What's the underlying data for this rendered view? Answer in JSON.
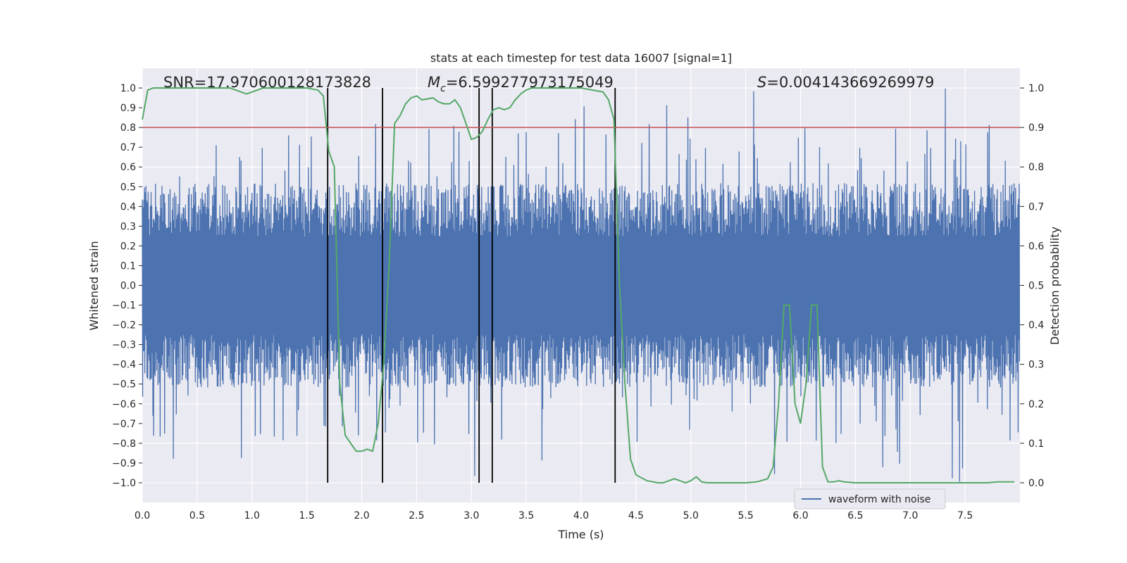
{
  "chart_data": {
    "type": "line",
    "title": "stats at each timestep for test data 16007 [signal=1]",
    "xlabel": "Time (s)",
    "ylabel": "Whitened strain",
    "ylabel_right": "Detection probability",
    "xlim": [
      0,
      8
    ],
    "ylim": [
      -1.1,
      1.1
    ],
    "ylim_right": [
      -0.05,
      1.05
    ],
    "grid": true,
    "x_ticks": [
      "0.0",
      "0.5",
      "1.0",
      "1.5",
      "2.0",
      "2.5",
      "3.0",
      "3.5",
      "4.0",
      "4.5",
      "5.0",
      "5.5",
      "6.0",
      "6.5",
      "7.0",
      "7.5"
    ],
    "y_ticks": [
      "1.0",
      "0.9",
      "0.8",
      "0.7",
      "0.6",
      "0.5",
      "0.4",
      "0.3",
      "0.2",
      "0.1",
      "0.0",
      "−0.1",
      "−0.2",
      "−0.3",
      "−0.4",
      "−0.5",
      "−0.6",
      "−0.7",
      "−0.8",
      "−0.9",
      "−1.0"
    ],
    "y_right_ticks": [
      "1.0",
      "0.9",
      "0.8",
      "0.7",
      "0.6",
      "0.5",
      "0.4",
      "0.3",
      "0.2",
      "0.1",
      "0.0"
    ],
    "annotations": {
      "snr": "SNR=17.970600128173828",
      "mc_symbol": "M",
      "mc_sub": "c",
      "mc_value": "=6.599277973175049",
      "s_symbol": "S",
      "s_value": "=0.004143669269979"
    },
    "legend": {
      "placement": "lower-right",
      "label": "waveform with noise"
    },
    "threshold": {
      "value": 0.9,
      "color": "#c44e52"
    },
    "vertical_lines_x": [
      1.69,
      2.19,
      3.07,
      3.19,
      4.31
    ],
    "waveform": {
      "name": "waveform with noise",
      "color": "#4c72b0",
      "amplitude_typical": 0.45,
      "amplitude_peak": 1.0
    },
    "series": [
      {
        "name": "detection probability",
        "color": "#55a868",
        "x": [
          0.0,
          0.05,
          0.1,
          0.15,
          0.2,
          0.3,
          0.5,
          0.6,
          0.8,
          0.9,
          0.95,
          1.0,
          1.1,
          1.3,
          1.5,
          1.6,
          1.65,
          1.7,
          1.75,
          1.8,
          1.85,
          1.9,
          1.95,
          2.0,
          2.05,
          2.1,
          2.15,
          2.2,
          2.25,
          2.3,
          2.35,
          2.4,
          2.45,
          2.5,
          2.55,
          2.65,
          2.7,
          2.75,
          2.8,
          2.85,
          2.9,
          2.95,
          3.0,
          3.05,
          3.1,
          3.15,
          3.2,
          3.25,
          3.3,
          3.35,
          3.4,
          3.45,
          3.5,
          3.55,
          3.6,
          3.65,
          3.7,
          3.8,
          4.0,
          4.2,
          4.25,
          4.3,
          4.35,
          4.4,
          4.45,
          4.5,
          4.6,
          4.7,
          4.75,
          4.8,
          4.85,
          4.9,
          4.95,
          5.0,
          5.05,
          5.1,
          5.15,
          5.2,
          5.3,
          5.4,
          5.5,
          5.6,
          5.7,
          5.75,
          5.8,
          5.85,
          5.9,
          5.95,
          6.0,
          6.05,
          6.1,
          6.15,
          6.2,
          6.25,
          6.3,
          6.35,
          6.4,
          6.5,
          6.6,
          6.7,
          6.8,
          7.0,
          7.2,
          7.4,
          7.5,
          7.6,
          7.7,
          7.8,
          7.95
        ],
        "values": [
          0.92,
          0.995,
          1.0,
          1.0,
          1.0,
          1.0,
          1.0,
          1.0,
          1.0,
          0.99,
          0.985,
          0.99,
          1.0,
          1.0,
          1.0,
          0.995,
          0.98,
          0.84,
          0.8,
          0.25,
          0.12,
          0.1,
          0.08,
          0.08,
          0.085,
          0.08,
          0.15,
          0.3,
          0.55,
          0.91,
          0.93,
          0.96,
          0.975,
          0.98,
          0.97,
          0.975,
          0.965,
          0.96,
          0.96,
          0.97,
          0.95,
          0.91,
          0.87,
          0.875,
          0.89,
          0.92,
          0.945,
          0.95,
          0.945,
          0.95,
          0.97,
          0.985,
          0.995,
          1.0,
          1.0,
          1.0,
          1.0,
          1.0,
          1.0,
          0.99,
          0.97,
          0.92,
          0.5,
          0.25,
          0.06,
          0.02,
          0.005,
          0.0,
          0.0,
          0.005,
          0.01,
          0.005,
          0.0,
          0.005,
          0.015,
          0.002,
          0.0,
          0.0,
          0.0,
          0.0,
          0.0,
          0.002,
          0.01,
          0.04,
          0.2,
          0.45,
          0.45,
          0.2,
          0.15,
          0.25,
          0.45,
          0.45,
          0.04,
          0.002,
          0.002,
          0.005,
          0.002,
          0.0,
          0.0,
          0.0,
          0.0,
          0.0,
          0.0,
          0.0,
          0.0,
          0.0,
          0.0,
          0.002,
          0.002
        ]
      }
    ]
  }
}
